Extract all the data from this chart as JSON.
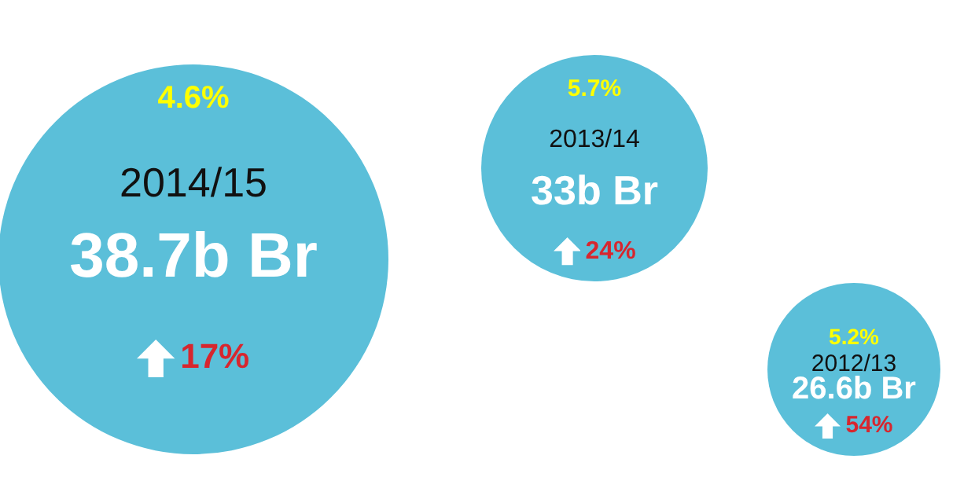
{
  "chart_data": {
    "type": "other",
    "categories": [
      "2014/15",
      "2013/14",
      "2012/13"
    ],
    "series": [
      {
        "values": [
          38.7,
          33,
          26.6
        ],
        "value_labels": [
          "38.7b Br",
          "33b Br",
          "26.6b Br"
        ],
        "color": "#5bbfd9"
      },
      {
        "values": [
          4.6,
          5.7,
          5.2
        ],
        "value_labels": [
          "4.6%",
          "5.7%",
          "5.2%"
        ],
        "color": "#ffff00"
      },
      {
        "values": [
          17,
          24,
          54
        ],
        "value_labels": [
          "17%",
          "24%",
          "54%"
        ],
        "color": "#d7262e"
      }
    ]
  }
}
